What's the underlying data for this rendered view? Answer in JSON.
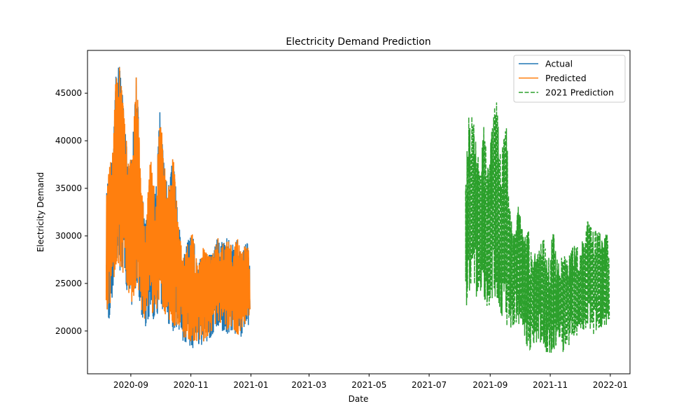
{
  "chart_data": {
    "type": "line",
    "title": "Electricity Demand Prediction",
    "xlabel": "Date",
    "ylabel": "Electricity Demand",
    "xlim": [
      "2020-07-19",
      "2022-01-21"
    ],
    "ylim": [
      15500,
      49500
    ],
    "x_ticks": [
      "2020-09",
      "2020-11",
      "2021-01",
      "2021-03",
      "2021-05",
      "2021-07",
      "2021-09",
      "2021-11",
      "2022-01"
    ],
    "y_ticks": [
      20000,
      25000,
      30000,
      35000,
      40000,
      45000
    ],
    "grid": false,
    "legend_position": "top-right",
    "colors": {
      "actual": "#1f77b4",
      "predicted": "#ff7f0e",
      "prediction_2021": "#2ca02c"
    },
    "series": [
      {
        "name": "Actual",
        "style": "solid",
        "x_range": [
          "2020-08-07",
          "2020-12-31"
        ],
        "upper_envelope": [
          [
            "2020-08-07",
            34000
          ],
          [
            "2020-08-10",
            37000
          ],
          [
            "2020-08-14",
            39000
          ],
          [
            "2020-08-17",
            47500
          ],
          [
            "2020-08-21",
            47800
          ],
          [
            "2020-08-25",
            43000
          ],
          [
            "2020-08-30",
            37000
          ],
          [
            "2020-09-03",
            40000
          ],
          [
            "2020-09-07",
            47600
          ],
          [
            "2020-09-11",
            36000
          ],
          [
            "2020-09-16",
            31000
          ],
          [
            "2020-09-21",
            38200
          ],
          [
            "2020-09-26",
            34000
          ],
          [
            "2020-10-01",
            44000
          ],
          [
            "2020-10-04",
            38000
          ],
          [
            "2020-10-09",
            35000
          ],
          [
            "2020-10-14",
            38400
          ],
          [
            "2020-10-19",
            32000
          ],
          [
            "2020-10-24",
            27500
          ],
          [
            "2020-10-29",
            29500
          ],
          [
            "2020-11-03",
            30300
          ],
          [
            "2020-11-08",
            26500
          ],
          [
            "2020-11-13",
            28800
          ],
          [
            "2020-11-18",
            28000
          ],
          [
            "2020-11-23",
            28000
          ],
          [
            "2020-11-28",
            29800
          ],
          [
            "2020-12-03",
            29300
          ],
          [
            "2020-12-08",
            29800
          ],
          [
            "2020-12-13",
            29000
          ],
          [
            "2020-12-18",
            29800
          ],
          [
            "2020-12-23",
            28300
          ],
          [
            "2020-12-28",
            29500
          ],
          [
            "2020-12-31",
            27500
          ]
        ],
        "lower_envelope": [
          [
            "2020-08-07",
            21500
          ],
          [
            "2020-08-10",
            21000
          ],
          [
            "2020-08-14",
            24000
          ],
          [
            "2020-08-17",
            26500
          ],
          [
            "2020-08-21",
            26000
          ],
          [
            "2020-08-25",
            25500
          ],
          [
            "2020-08-30",
            23500
          ],
          [
            "2020-09-03",
            22000
          ],
          [
            "2020-09-07",
            25000
          ],
          [
            "2020-09-11",
            22000
          ],
          [
            "2020-09-16",
            20500
          ],
          [
            "2020-09-21",
            21500
          ],
          [
            "2020-09-26",
            21000
          ],
          [
            "2020-10-01",
            23000
          ],
          [
            "2020-10-04",
            21500
          ],
          [
            "2020-10-09",
            20500
          ],
          [
            "2020-10-14",
            20000
          ],
          [
            "2020-10-19",
            20200
          ],
          [
            "2020-10-24",
            18800
          ],
          [
            "2020-10-29",
            18500
          ],
          [
            "2020-11-03",
            18200
          ],
          [
            "2020-11-08",
            18500
          ],
          [
            "2020-11-13",
            18300
          ],
          [
            "2020-11-18",
            18800
          ],
          [
            "2020-11-23",
            19500
          ],
          [
            "2020-11-28",
            20500
          ],
          [
            "2020-12-03",
            20000
          ],
          [
            "2020-12-08",
            19500
          ],
          [
            "2020-12-13",
            20000
          ],
          [
            "2020-12-18",
            19000
          ],
          [
            "2020-12-23",
            19500
          ],
          [
            "2020-12-28",
            20000
          ],
          [
            "2020-12-31",
            21000
          ]
        ]
      },
      {
        "name": "Predicted",
        "style": "solid",
        "x_range": [
          "2020-08-07",
          "2020-12-31"
        ],
        "upper_envelope": [
          [
            "2020-08-07",
            34000
          ],
          [
            "2020-08-10",
            37000
          ],
          [
            "2020-08-14",
            39000
          ],
          [
            "2020-08-17",
            47500
          ],
          [
            "2020-08-21",
            47800
          ],
          [
            "2020-08-25",
            43000
          ],
          [
            "2020-08-30",
            37000
          ],
          [
            "2020-09-03",
            40000
          ],
          [
            "2020-09-07",
            47600
          ],
          [
            "2020-09-11",
            36000
          ],
          [
            "2020-09-16",
            31000
          ],
          [
            "2020-09-21",
            38200
          ],
          [
            "2020-09-26",
            34000
          ],
          [
            "2020-10-01",
            44000
          ],
          [
            "2020-10-04",
            38000
          ],
          [
            "2020-10-09",
            35000
          ],
          [
            "2020-10-14",
            38400
          ],
          [
            "2020-10-19",
            32000
          ],
          [
            "2020-10-24",
            27500
          ],
          [
            "2020-10-29",
            29500
          ],
          [
            "2020-11-03",
            30300
          ],
          [
            "2020-11-08",
            26500
          ],
          [
            "2020-11-13",
            28800
          ],
          [
            "2020-11-18",
            28000
          ],
          [
            "2020-11-23",
            28000
          ],
          [
            "2020-11-28",
            29800
          ],
          [
            "2020-12-03",
            29300
          ],
          [
            "2020-12-08",
            29800
          ],
          [
            "2020-12-13",
            29000
          ],
          [
            "2020-12-18",
            29800
          ],
          [
            "2020-12-23",
            28300
          ],
          [
            "2020-12-28",
            29500
          ],
          [
            "2020-12-31",
            27500
          ]
        ],
        "lower_envelope": [
          [
            "2020-08-07",
            22000
          ],
          [
            "2020-08-10",
            21500
          ],
          [
            "2020-08-14",
            24500
          ],
          [
            "2020-08-17",
            27000
          ],
          [
            "2020-08-21",
            26500
          ],
          [
            "2020-08-25",
            26000
          ],
          [
            "2020-08-30",
            24000
          ],
          [
            "2020-09-03",
            22500
          ],
          [
            "2020-09-07",
            25500
          ],
          [
            "2020-09-11",
            22500
          ],
          [
            "2020-09-16",
            21000
          ],
          [
            "2020-09-21",
            22000
          ],
          [
            "2020-09-26",
            21500
          ],
          [
            "2020-10-01",
            23500
          ],
          [
            "2020-10-04",
            22000
          ],
          [
            "2020-10-09",
            21000
          ],
          [
            "2020-10-14",
            20500
          ],
          [
            "2020-10-19",
            20700
          ],
          [
            "2020-10-24",
            19300
          ],
          [
            "2020-10-29",
            19000
          ],
          [
            "2020-11-03",
            18700
          ],
          [
            "2020-11-08",
            19000
          ],
          [
            "2020-11-13",
            18800
          ],
          [
            "2020-11-18",
            19300
          ],
          [
            "2020-11-23",
            20000
          ],
          [
            "2020-11-28",
            21000
          ],
          [
            "2020-12-03",
            20500
          ],
          [
            "2020-12-08",
            20000
          ],
          [
            "2020-12-13",
            20500
          ],
          [
            "2020-12-18",
            19500
          ],
          [
            "2020-12-23",
            20000
          ],
          [
            "2020-12-28",
            20500
          ],
          [
            "2020-12-31",
            21500
          ]
        ]
      },
      {
        "name": "2021 Prediction",
        "style": "dashed",
        "x_range": [
          "2021-08-07",
          "2021-12-31"
        ],
        "upper_envelope": [
          [
            "2021-08-07",
            35000
          ],
          [
            "2021-08-10",
            42800
          ],
          [
            "2021-08-14",
            43400
          ],
          [
            "2021-08-18",
            39500
          ],
          [
            "2021-08-22",
            37500
          ],
          [
            "2021-08-26",
            42000
          ],
          [
            "2021-08-30",
            37000
          ],
          [
            "2021-09-03",
            41500
          ],
          [
            "2021-09-07",
            44700
          ],
          [
            "2021-09-12",
            38000
          ],
          [
            "2021-09-17",
            42500
          ],
          [
            "2021-09-21",
            33000
          ],
          [
            "2021-09-26",
            30000
          ],
          [
            "2021-09-30",
            33500
          ],
          [
            "2021-10-05",
            29500
          ],
          [
            "2021-10-10",
            30800
          ],
          [
            "2021-10-15",
            28000
          ],
          [
            "2021-10-20",
            28500
          ],
          [
            "2021-10-25",
            29800
          ],
          [
            "2021-10-30",
            27500
          ],
          [
            "2021-11-04",
            30500
          ],
          [
            "2021-11-09",
            27000
          ],
          [
            "2021-11-14",
            28000
          ],
          [
            "2021-11-19",
            27500
          ],
          [
            "2021-11-24",
            29000
          ],
          [
            "2021-11-29",
            28800
          ],
          [
            "2021-12-04",
            29500
          ],
          [
            "2021-12-09",
            31800
          ],
          [
            "2021-12-14",
            30500
          ],
          [
            "2021-12-19",
            31000
          ],
          [
            "2021-12-24",
            29500
          ],
          [
            "2021-12-29",
            30400
          ],
          [
            "2021-12-31",
            27800
          ]
        ],
        "lower_envelope": [
          [
            "2021-08-07",
            22000
          ],
          [
            "2021-08-10",
            24000
          ],
          [
            "2021-08-14",
            25000
          ],
          [
            "2021-08-18",
            23500
          ],
          [
            "2021-08-22",
            24000
          ],
          [
            "2021-08-26",
            23000
          ],
          [
            "2021-08-30",
            22000
          ],
          [
            "2021-09-03",
            22500
          ],
          [
            "2021-09-07",
            24000
          ],
          [
            "2021-09-12",
            21500
          ],
          [
            "2021-09-17",
            21000
          ],
          [
            "2021-09-21",
            19300
          ],
          [
            "2021-09-26",
            20800
          ],
          [
            "2021-09-30",
            20500
          ],
          [
            "2021-10-05",
            19500
          ],
          [
            "2021-10-10",
            17600
          ],
          [
            "2021-10-15",
            18500
          ],
          [
            "2021-10-20",
            19000
          ],
          [
            "2021-10-25",
            18500
          ],
          [
            "2021-10-30",
            17300
          ],
          [
            "2021-11-04",
            18000
          ],
          [
            "2021-11-09",
            18500
          ],
          [
            "2021-11-14",
            17800
          ],
          [
            "2021-11-19",
            17700
          ],
          [
            "2021-11-24",
            19500
          ],
          [
            "2021-11-29",
            19000
          ],
          [
            "2021-12-04",
            20000
          ],
          [
            "2021-12-09",
            20500
          ],
          [
            "2021-12-14",
            19500
          ],
          [
            "2021-12-19",
            20000
          ],
          [
            "2021-12-24",
            20500
          ],
          [
            "2021-12-29",
            20200
          ],
          [
            "2021-12-31",
            21000
          ]
        ]
      }
    ]
  }
}
